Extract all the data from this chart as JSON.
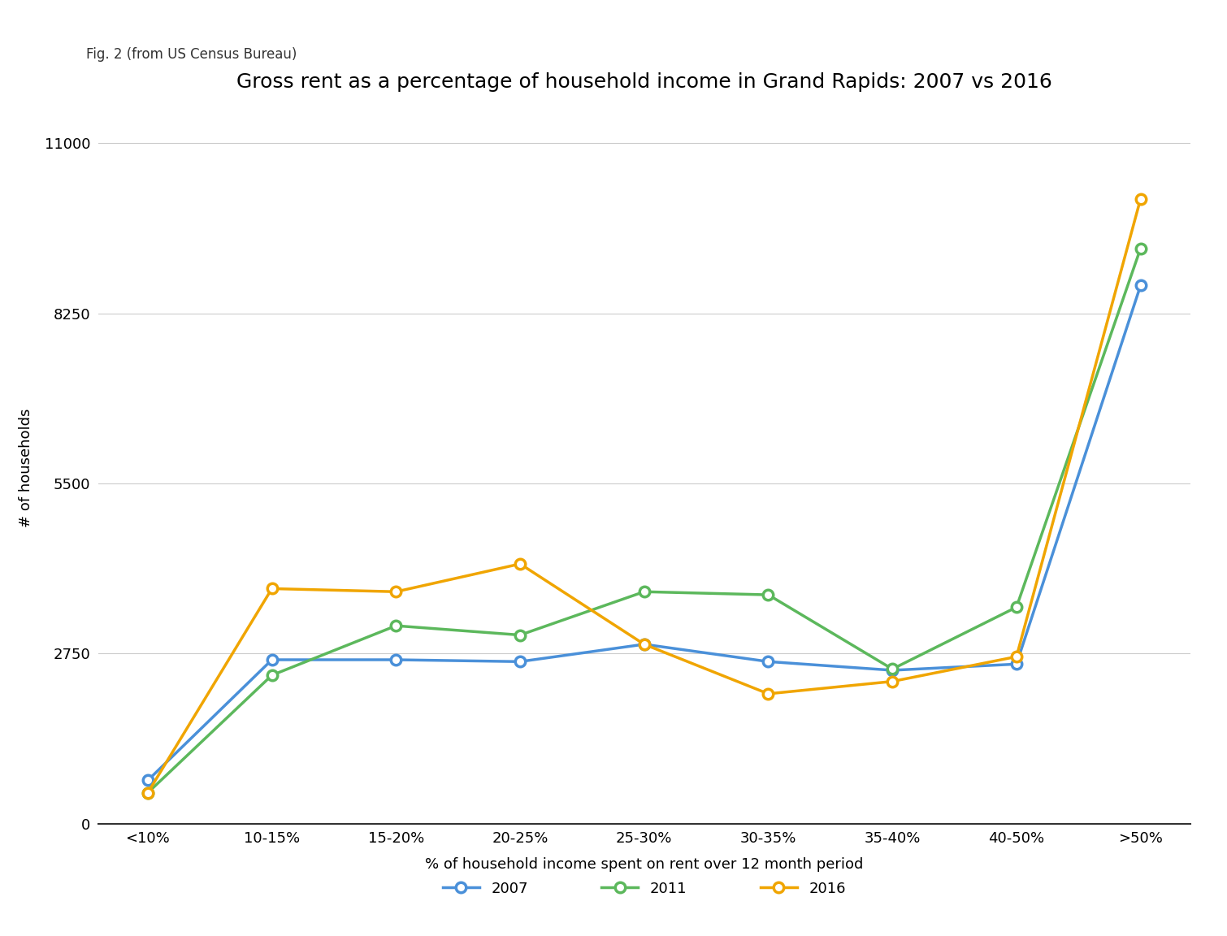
{
  "title": "Gross rent as a percentage of household income in Grand Rapids: 2007 vs 2016",
  "subtitle": "Fig. 2 (from US Census Bureau)",
  "xlabel": "% of household income spent on rent over 12 month period",
  "ylabel": "# of households",
  "categories": [
    "<10%",
    "10-15%",
    "15-20%",
    "20-25%",
    "25-30%",
    "30-35%",
    "35-40%",
    "40-50%",
    ">50%"
  ],
  "series_order": [
    "2007",
    "2011",
    "2016"
  ],
  "series": {
    "2007": {
      "values": [
        700,
        2650,
        2650,
        2620,
        2900,
        2620,
        2480,
        2580,
        8700
      ],
      "color": "#4a90d9",
      "marker": "o"
    },
    "2011": {
      "values": [
        500,
        2400,
        3200,
        3050,
        3750,
        3700,
        2500,
        3500,
        9300
      ],
      "color": "#5cb85c",
      "marker": "o"
    },
    "2016": {
      "values": [
        500,
        3800,
        3750,
        4200,
        2900,
        2100,
        2300,
        2700,
        10100
      ],
      "color": "#f0a500",
      "marker": "o"
    }
  },
  "yticks": [
    0,
    2750,
    5500,
    8250,
    11000
  ],
  "ylim": [
    0,
    11500
  ],
  "background_color": "#ffffff",
  "grid_color": "#cccccc",
  "title_fontsize": 18,
  "subtitle_fontsize": 12,
  "axis_label_fontsize": 13,
  "tick_fontsize": 13,
  "legend_fontsize": 13,
  "line_width": 2.5,
  "marker_size": 9
}
